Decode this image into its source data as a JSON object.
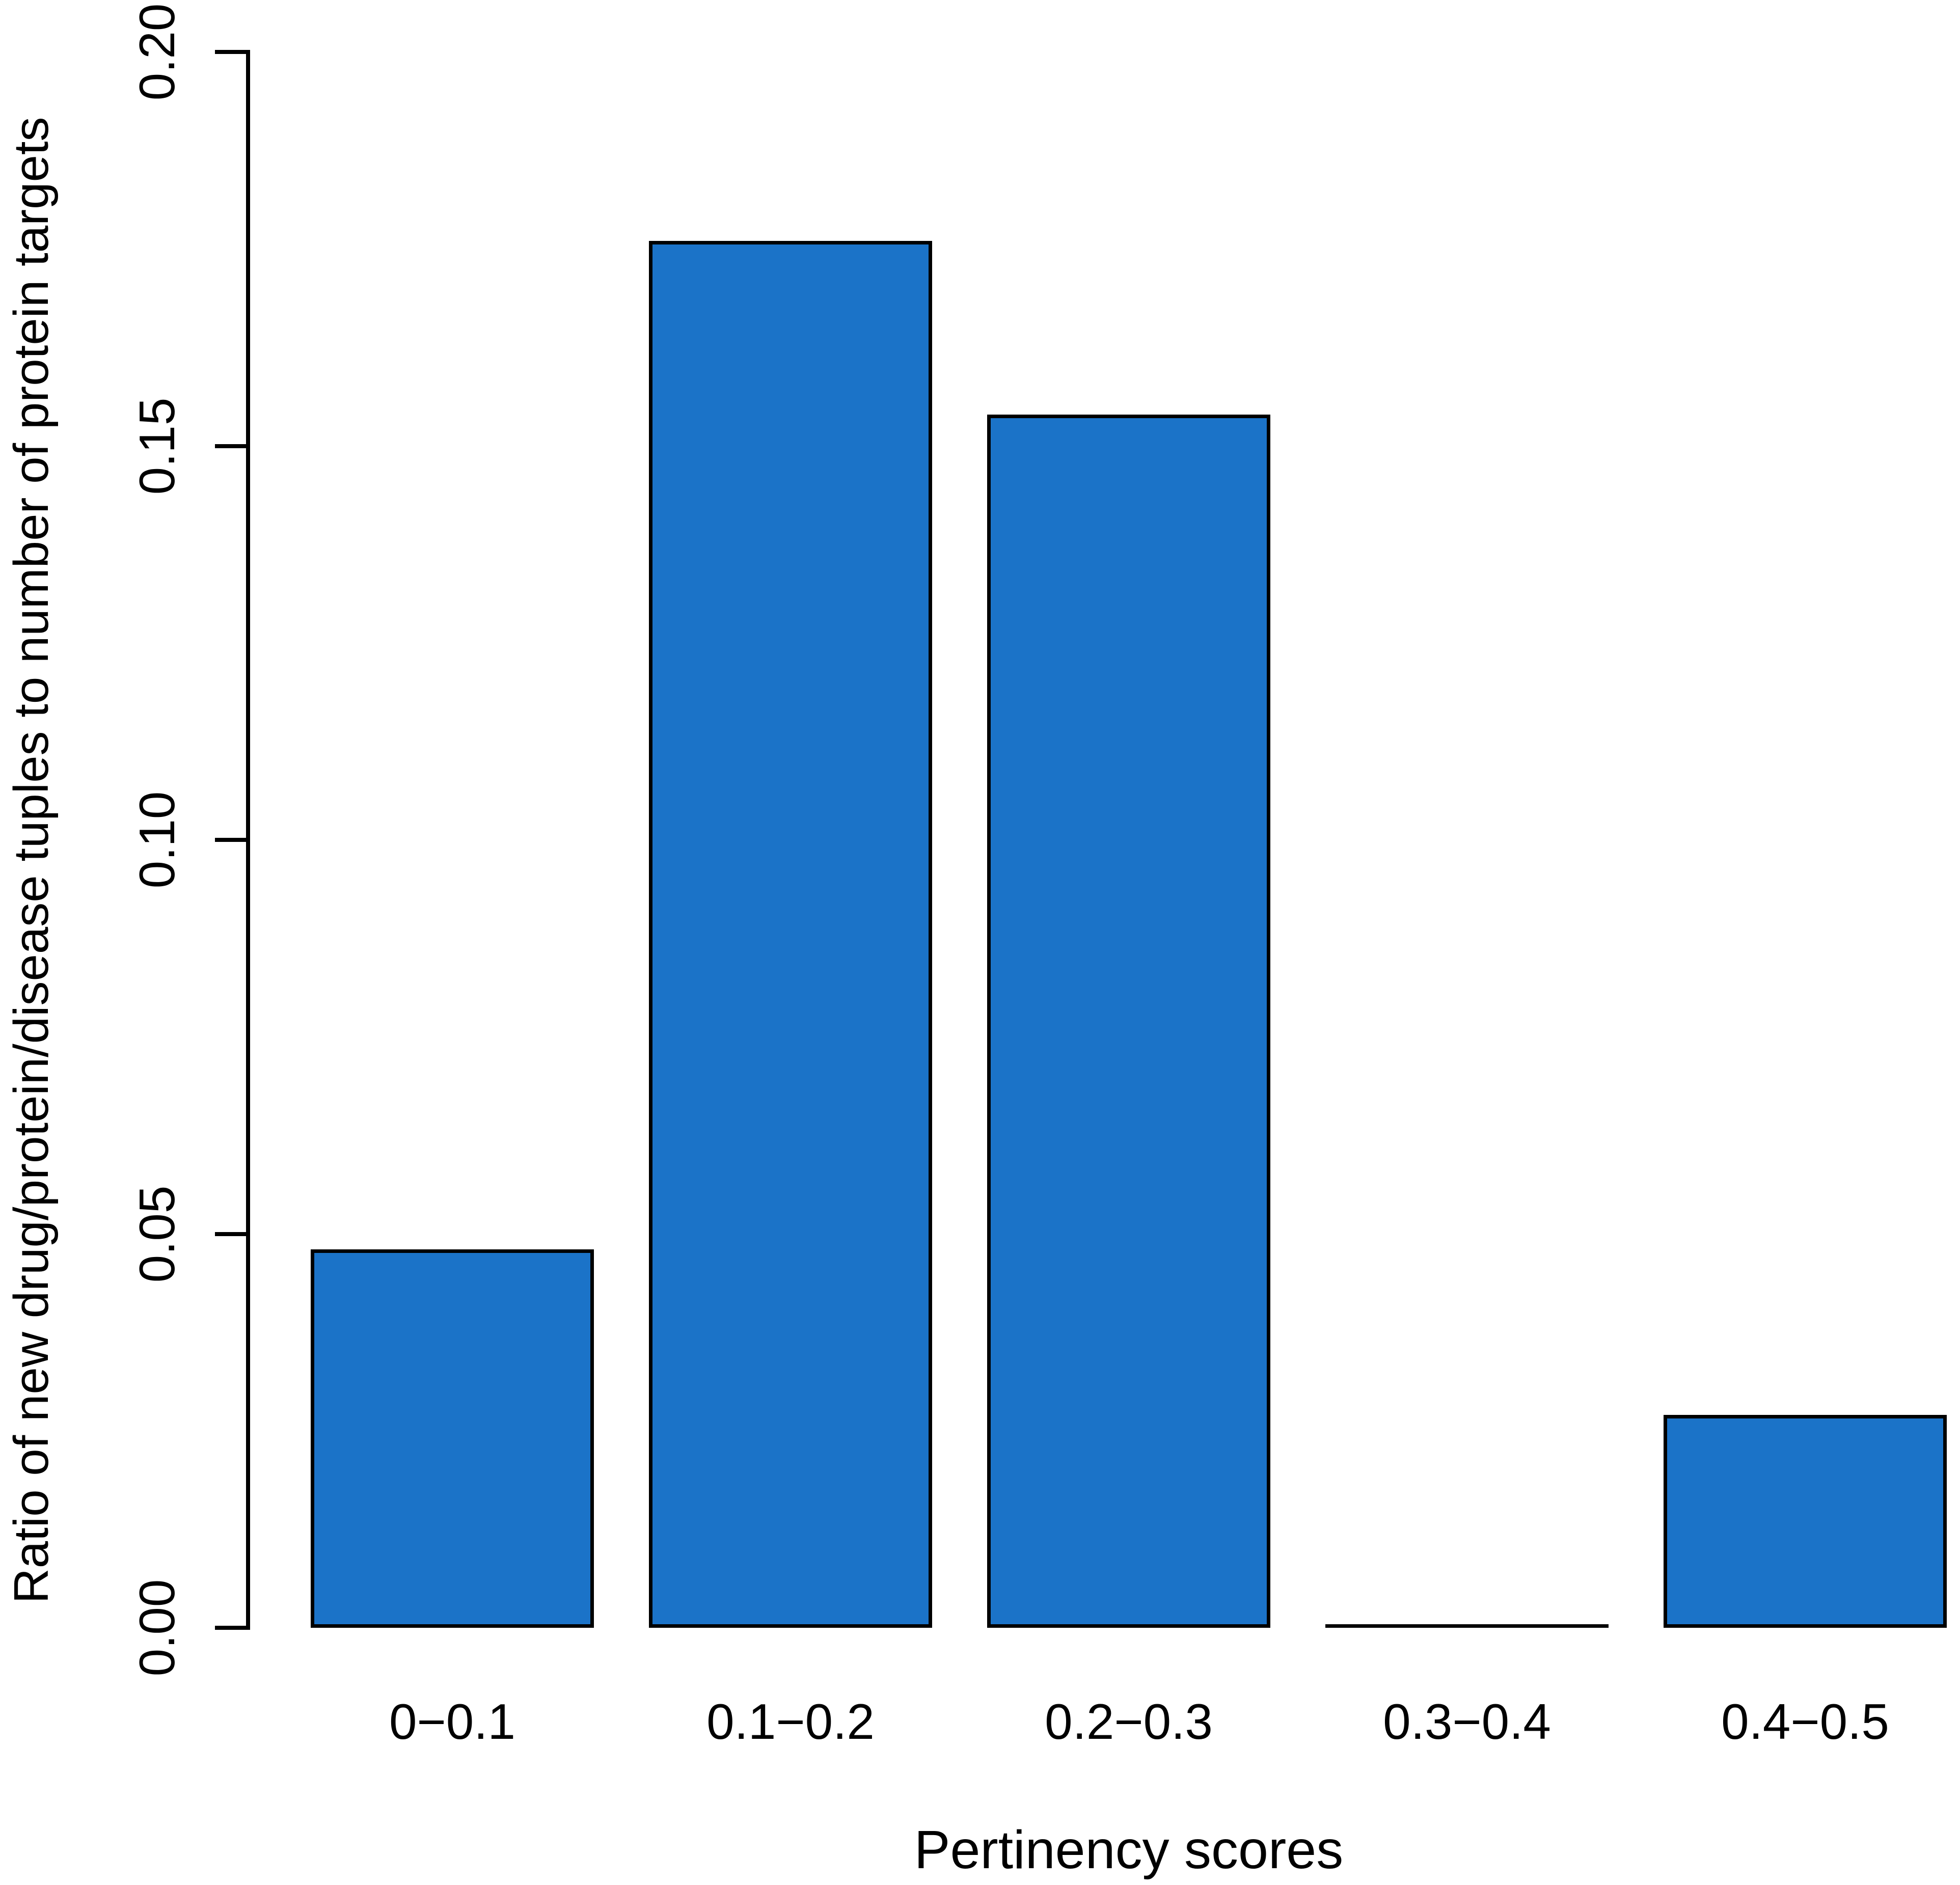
{
  "chart_data": {
    "type": "bar",
    "title": "",
    "categories": [
      "0−0.1",
      "0.1−0.2",
      "0.2−0.3",
      "0.3−0.4",
      "0.4−0.5"
    ],
    "values": [
      0.048,
      0.176,
      0.154,
      0,
      0.027
    ],
    "xlabel": "Pertinency scores",
    "ylabel": "Ratio of new drug/protein/disease tuples to number of protein targets",
    "ylim": [
      0,
      0.2
    ],
    "yticks": [
      0,
      0.05,
      0.1,
      0.15,
      0.2
    ],
    "ytick_labels": [
      "0.00",
      "0.05",
      "0.10",
      "0.15",
      "0.20"
    ],
    "grid": false,
    "legend": null,
    "bar_color": "#1B73C8",
    "bar_border_color": "#000000"
  }
}
